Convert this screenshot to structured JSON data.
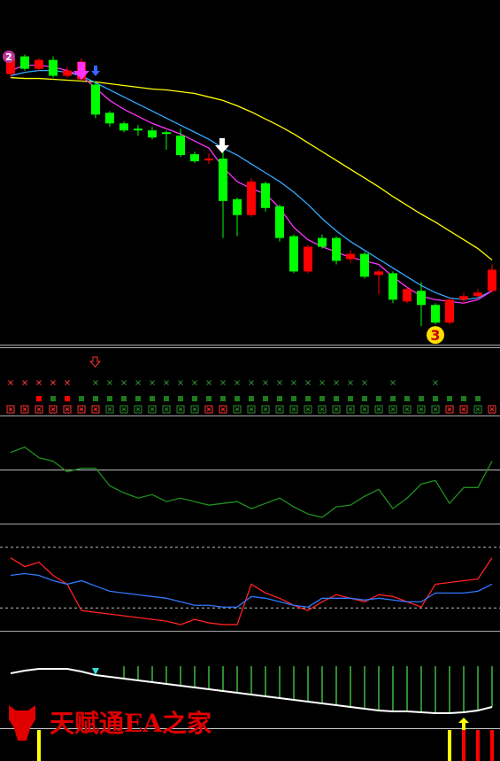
{
  "chart_data": [
    {
      "type": "candlestick",
      "ylim": [
        0,
        390
      ],
      "up_color": "#ff0000",
      "down_color": "#00ff00",
      "open": [
        306,
        326,
        312,
        322,
        304,
        300,
        294,
        262,
        250,
        244,
        242,
        240,
        236,
        215,
        208,
        210,
        164,
        146,
        182,
        156,
        122,
        82,
        120,
        120,
        96,
        102,
        78,
        80,
        48,
        60,
        44,
        24,
        50,
        54,
        60
      ],
      "close": [
        324,
        312,
        322,
        304,
        310,
        320,
        260,
        250,
        242,
        242,
        234,
        238,
        214,
        207,
        210,
        162,
        146,
        184,
        154,
        120,
        82,
        110,
        110,
        94,
        102,
        76,
        82,
        50,
        62,
        44,
        24,
        50,
        54,
        58,
        84
      ],
      "high": [
        328,
        328,
        324,
        326,
        314,
        324,
        298,
        264,
        252,
        248,
        246,
        242,
        244,
        218,
        216,
        220,
        166,
        188,
        184,
        158,
        124,
        112,
        124,
        122,
        106,
        104,
        84,
        82,
        64,
        70,
        46,
        52,
        58,
        62,
        90
      ],
      "low": [
        302,
        310,
        310,
        302,
        302,
        298,
        256,
        246,
        240,
        236,
        232,
        220,
        212,
        205,
        204,
        120,
        122,
        144,
        150,
        116,
        80,
        80,
        108,
        90,
        92,
        74,
        56,
        46,
        46,
        20,
        22,
        22,
        46,
        52,
        58
      ],
      "series": [
        {
          "color": "#ffff00",
          "values": [
            302,
            301,
            301,
            300,
            299,
            298,
            297,
            295,
            293,
            291,
            289,
            288,
            286,
            284,
            280,
            276,
            270,
            263,
            255,
            247,
            238,
            228,
            218,
            208,
            198,
            188,
            178,
            167,
            157,
            147,
            138,
            128,
            118,
            108,
            95
          ]
        },
        {
          "color": "#33aaff",
          "values": [
            304,
            308,
            310,
            310,
            308,
            304,
            296,
            288,
            280,
            272,
            264,
            256,
            248,
            240,
            232,
            222,
            214,
            204,
            194,
            184,
            172,
            158,
            142,
            128,
            116,
            106,
            96,
            86,
            76,
            66,
            58,
            52,
            50,
            52,
            60
          ]
        },
        {
          "color": "#ff33ff",
          "values": [
            310,
            316,
            316,
            314,
            310,
            304,
            290,
            276,
            266,
            258,
            250,
            244,
            238,
            230,
            222,
            200,
            184,
            176,
            170,
            154,
            132,
            118,
            110,
            104,
            98,
            94,
            90,
            76,
            64,
            54,
            50,
            48,
            46,
            50,
            60
          ]
        }
      ],
      "annotations": [
        "2",
        "3"
      ]
    },
    {
      "type": "signals",
      "rows": [
        {
          "marker": "x",
          "colors": [
            "#ff3333",
            "#ff3333",
            "#ff3333",
            "#ff3333",
            "#ff3333",
            null,
            "#2e8b2e",
            "#2e8b2e",
            "#2e8b2e",
            "#2e8b2e",
            "#2e8b2e",
            "#2e8b2e",
            "#2e8b2e",
            "#2e8b2e",
            "#2e8b2e",
            "#2e8b2e",
            "#2e8b2e",
            "#2e8b2e",
            "#2e8b2e",
            "#2e8b2e",
            "#2e8b2e",
            "#2e8b2e",
            "#2e8b2e",
            "#2e8b2e",
            "#2e8b2e",
            "#2e8b2e",
            null,
            "#2e8b2e",
            null,
            null,
            "#2e8b2e",
            null,
            null,
            null,
            null
          ]
        },
        {
          "marker": "square",
          "colors": [
            null,
            null,
            "#ff0000",
            "#1f7a1f",
            "#ff0000",
            "#1f7a1f",
            "#1f7a1f",
            "#1f7a1f",
            "#1f7a1f",
            "#1f7a1f",
            "#1f7a1f",
            "#1f7a1f",
            "#1f7a1f",
            "#1f7a1f",
            "#1f7a1f",
            "#1f7a1f",
            "#1f7a1f",
            "#1f7a1f",
            "#1f7a1f",
            "#1f7a1f",
            "#1f7a1f",
            "#1f7a1f",
            "#1f7a1f",
            "#1f7a1f",
            "#1f7a1f",
            "#1f7a1f",
            "#1f7a1f",
            "#1f7a1f",
            "#1f7a1f",
            "#1f7a1f",
            "#1f7a1f",
            "#1f7a1f",
            "#1f7a1f",
            "#1f7a1f",
            null
          ]
        },
        {
          "marker": "box",
          "colors": [
            "#ff3333",
            "#ff3333",
            "#ff3333",
            "#ff3333",
            "#ff3333",
            "#ff3333",
            "#ff3333",
            "#2e8b2e",
            "#2e8b2e",
            "#2e8b2e",
            "#2e8b2e",
            "#2e8b2e",
            "#2e8b2e",
            "#2e8b2e",
            "#ff3333",
            "#ff3333",
            "#2e8b2e",
            "#2e8b2e",
            "#2e8b2e",
            "#2e8b2e",
            "#2e8b2e",
            "#2e8b2e",
            "#2e8b2e",
            "#2e8b2e",
            "#2e8b2e",
            "#2e8b2e",
            "#2e8b2e",
            "#2e8b2e",
            "#2e8b2e",
            "#2e8b2e",
            "#2e8b2e",
            "#ff3333",
            "#ff3333",
            "#2e8b2e",
            "#ff3333"
          ]
        }
      ]
    },
    {
      "type": "line",
      "ylim": [
        0,
        120
      ],
      "levels": [
        60
      ],
      "series": [
        {
          "color": "#1f8f1f",
          "values": [
            80,
            86,
            74,
            70,
            58,
            62,
            62,
            42,
            34,
            28,
            32,
            24,
            28,
            24,
            20,
            22,
            24,
            16,
            22,
            28,
            18,
            10,
            6,
            18,
            20,
            30,
            38,
            16,
            28,
            44,
            48,
            22,
            40,
            40,
            70
          ]
        }
      ]
    },
    {
      "type": "line",
      "ylim": [
        0,
        118
      ],
      "levels": [
        94,
        25
      ],
      "series": [
        {
          "color": "#ff2222",
          "values": [
            82,
            72,
            77,
            62,
            52,
            22,
            20,
            18,
            16,
            14,
            12,
            10,
            6,
            12,
            8,
            6,
            6,
            52,
            42,
            36,
            28,
            22,
            32,
            40,
            36,
            32,
            40,
            38,
            32,
            26,
            52,
            54,
            56,
            58,
            82
          ]
        },
        {
          "color": "#3377ff",
          "values": [
            62,
            64,
            62,
            56,
            52,
            56,
            50,
            44,
            42,
            40,
            38,
            36,
            32,
            28,
            28,
            26,
            26,
            38,
            36,
            32,
            28,
            26,
            36,
            36,
            36,
            34,
            36,
            34,
            32,
            32,
            42,
            42,
            42,
            44,
            52
          ]
        }
      ]
    },
    {
      "type": "histogram",
      "ylim": [
        0,
        145
      ],
      "tops": [
        null,
        null,
        null,
        null,
        null,
        null,
        null,
        null,
        107,
        107,
        107,
        107,
        107,
        107,
        107,
        107,
        107,
        107,
        107,
        107,
        107,
        107,
        107,
        107,
        107,
        107,
        107,
        107,
        107,
        107,
        107,
        107,
        107,
        107,
        107
      ],
      "series": [
        {
          "color": "#ffffff",
          "values": [
            99,
            102,
            104,
            104,
            104,
            101,
            97,
            95,
            93,
            91,
            89,
            87,
            85,
            83,
            81,
            79,
            77,
            75,
            73,
            71,
            69,
            67,
            65,
            63,
            61,
            59,
            57,
            56,
            56,
            55,
            54,
            54,
            55,
            57,
            61
          ]
        }
      ],
      "signals": [
        null,
        null,
        "#ffff00",
        null,
        null,
        null,
        null,
        null,
        null,
        null,
        null,
        null,
        null,
        null,
        null,
        null,
        null,
        null,
        null,
        null,
        null,
        null,
        null,
        null,
        null,
        null,
        null,
        null,
        null,
        null,
        null,
        "#ffff00",
        "#ff0000",
        "#ff0000",
        "#ff0000"
      ]
    }
  ],
  "watermark": "天赋通EA之家"
}
